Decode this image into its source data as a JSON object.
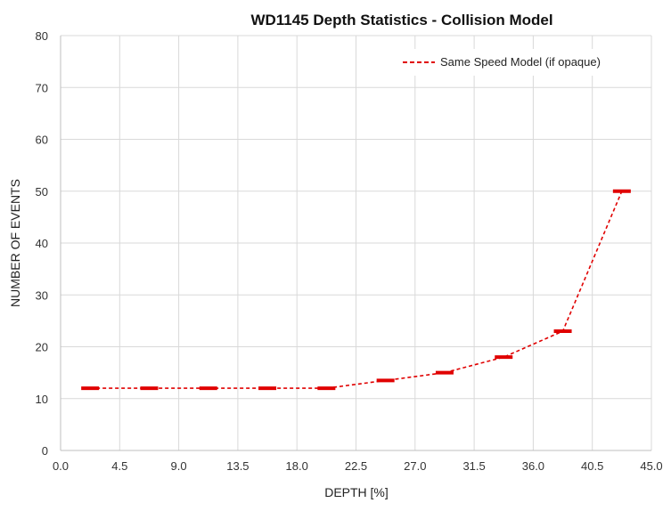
{
  "chart_data": {
    "type": "line",
    "title": "WD1145 Depth Statistics - Collision Model",
    "xlabel": "DEPTH [%]",
    "ylabel": "NUMBER OF EVENTS",
    "xlim": [
      0,
      45
    ],
    "ylim": [
      0,
      80
    ],
    "x_ticks": [
      "0.0",
      "4.5",
      "9.0",
      "13.5",
      "18.0",
      "22.5",
      "27.0",
      "31.5",
      "36.0",
      "40.5",
      "45.0"
    ],
    "y_ticks": [
      "0",
      "10",
      "20",
      "30",
      "40",
      "50",
      "60",
      "70",
      "80"
    ],
    "grid": true,
    "legend_position": "top-right",
    "series": [
      {
        "name": "Same Speed Model (if opaque)",
        "color": "#e00000",
        "line_style": "dashed",
        "marker": "horizontal-dash",
        "x": [
          2.25,
          6.75,
          11.25,
          15.75,
          20.25,
          24.75,
          29.25,
          33.75,
          38.25,
          42.75
        ],
        "y": [
          12,
          12,
          12,
          12,
          12,
          13.5,
          15,
          18,
          23,
          50
        ]
      }
    ]
  }
}
